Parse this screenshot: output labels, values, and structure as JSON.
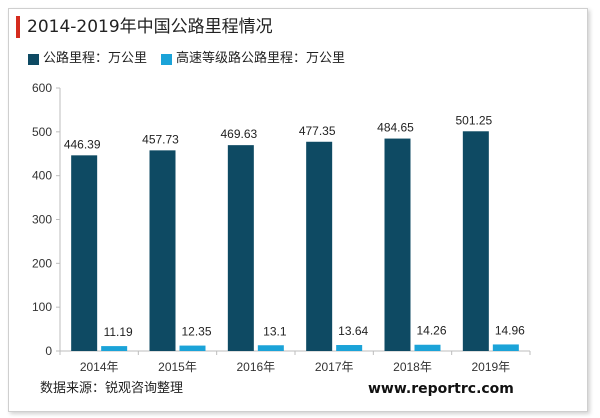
{
  "chart_data": {
    "type": "bar",
    "title": "2014-2019年中国公路里程情况",
    "categories": [
      "2014年",
      "2015年",
      "2016年",
      "2017年",
      "2018年",
      "2019年"
    ],
    "series": [
      {
        "name": "公路里程：万公里",
        "values": [
          446.39,
          457.73,
          469.63,
          477.35,
          484.65,
          501.25
        ],
        "color": "#0e4a63"
      },
      {
        "name": "高速等级路公路里程：万公里",
        "values": [
          11.19,
          12.35,
          13.1,
          13.64,
          14.26,
          14.96
        ],
        "color": "#1ba3d8"
      }
    ],
    "value_labels": [
      [
        "446.39",
        "457.73",
        "469.63",
        "477.35",
        "484.65",
        "501.25"
      ],
      [
        "11.19",
        "12.35",
        "13.1",
        "13.64",
        "14.26",
        "14.96"
      ]
    ],
    "ylim": [
      0,
      600
    ],
    "yticks": [
      "0",
      "100",
      "200",
      "300",
      "400",
      "500",
      "600"
    ],
    "xlabel": "",
    "ylabel": "",
    "grid": false,
    "legend_position": "top-left"
  },
  "footer": {
    "source": "数据来源：锐观咨询整理",
    "website": "www.reportrc.com"
  }
}
